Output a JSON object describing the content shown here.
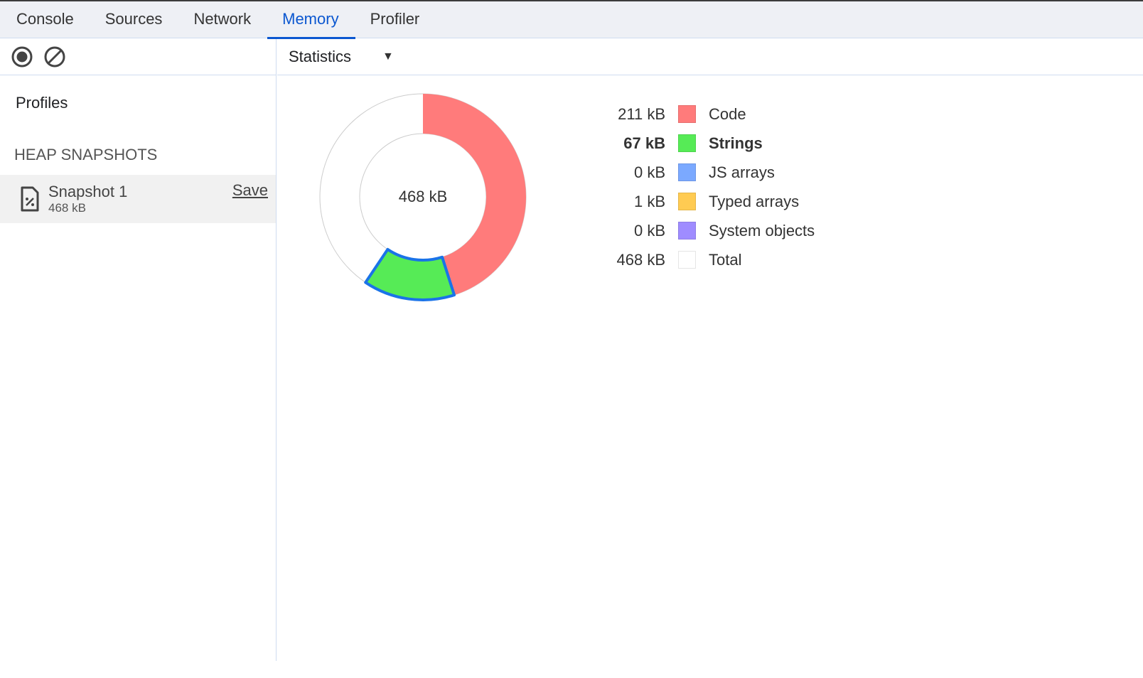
{
  "tabs": [
    {
      "label": "Console"
    },
    {
      "label": "Sources"
    },
    {
      "label": "Network"
    },
    {
      "label": "Memory",
      "active": true
    },
    {
      "label": "Profiler"
    }
  ],
  "toolbar": {
    "record_icon": "record-icon",
    "clear_icon": "clear-icon"
  },
  "sidebar": {
    "title": "Profiles",
    "section": "HEAP SNAPSHOTS",
    "snapshots": [
      {
        "title": "Snapshot 1",
        "size": "468 kB",
        "save_label": "Save",
        "icon": "heap-snapshot-file-icon"
      }
    ]
  },
  "view_selector": {
    "selected": "Statistics"
  },
  "chart_data": {
    "type": "pie",
    "total": 468,
    "total_label": "468 kB",
    "unit": "kB",
    "highlighted": "Strings",
    "series": [
      {
        "name": "Code",
        "value": 211,
        "label": "211 kB",
        "color": "#ff7b7b"
      },
      {
        "name": "Strings",
        "value": 67,
        "label": "67 kB",
        "color": "#56eb56"
      },
      {
        "name": "JS arrays",
        "value": 0,
        "label": "0 kB",
        "color": "#7ba9ff"
      },
      {
        "name": "Typed arrays",
        "value": 1,
        "label": "1 kB",
        "color": "#ffcb52"
      },
      {
        "name": "System objects",
        "value": 0,
        "label": "0 kB",
        "color": "#9f8cff"
      }
    ],
    "total_row": {
      "name": "Total",
      "label": "468 kB",
      "color": "#ffffff"
    }
  }
}
